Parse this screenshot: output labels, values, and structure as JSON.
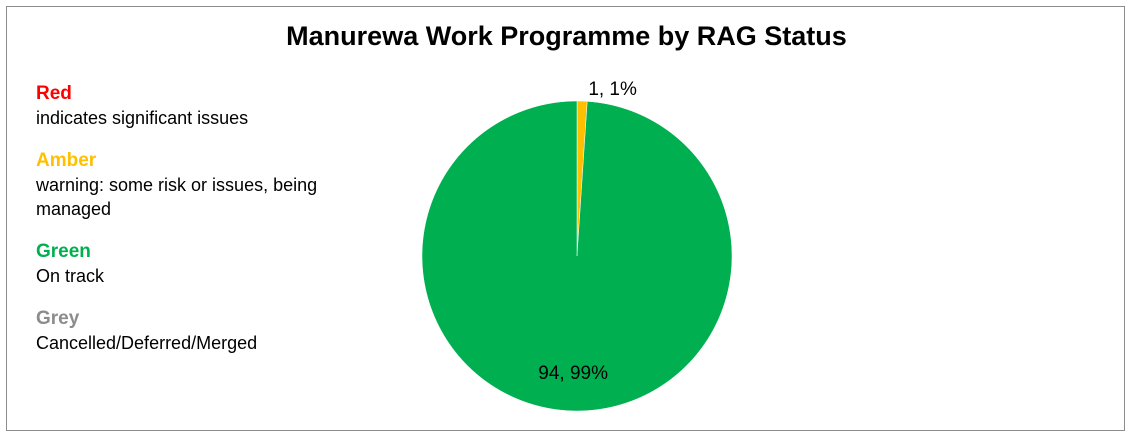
{
  "chart_data": {
    "type": "pie",
    "title": "Manurewa Work Programme by RAG Status",
    "slices": [
      {
        "name": "Amber",
        "value": 1,
        "percent": 1,
        "color": "#FFC000",
        "label": "1, 1%"
      },
      {
        "name": "Green",
        "value": 94,
        "percent": 99,
        "color": "#00B050",
        "label": "94, 99%"
      }
    ],
    "legend": [
      {
        "name": "Red",
        "description": "indicates significant issues",
        "color": "#FF0000"
      },
      {
        "name": "Amber",
        "description": "warning:  some risk or issues, being managed",
        "color": "#FFC000"
      },
      {
        "name": "Green",
        "description": "On track",
        "color": "#00B050"
      },
      {
        "name": "Grey",
        "description": "Cancelled/Deferred/Merged",
        "color": "#8C8C8C"
      }
    ],
    "legend_placement": "left"
  }
}
